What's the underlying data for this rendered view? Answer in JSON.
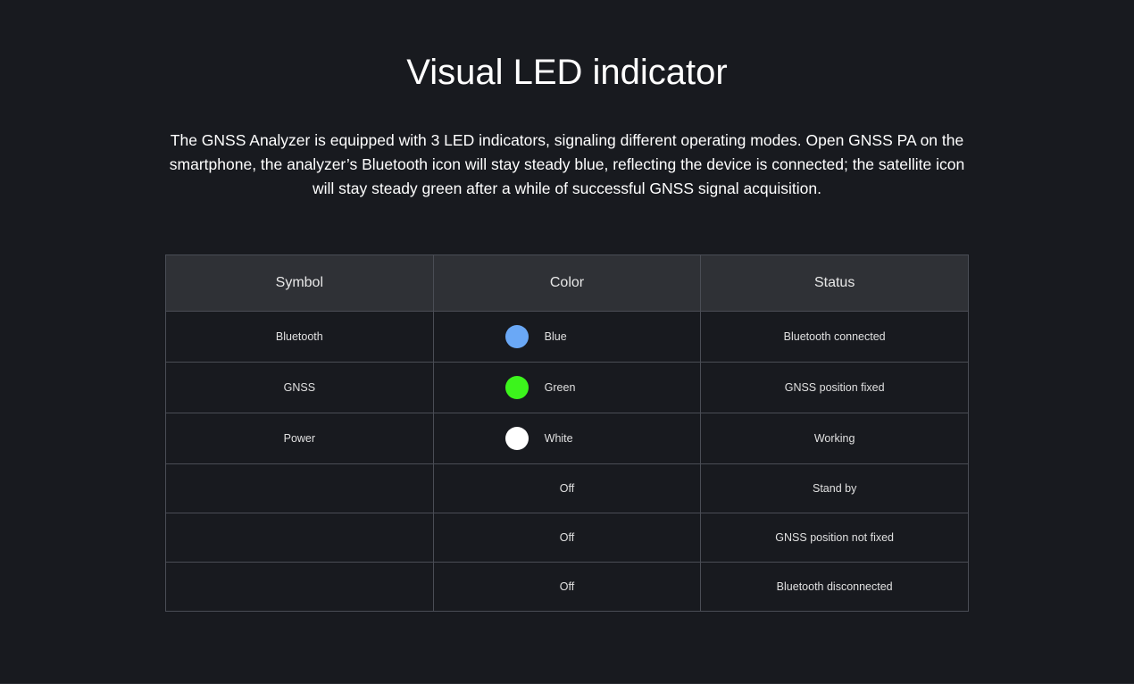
{
  "heading": {
    "title": "Visual LED indicator",
    "description": "The GNSS Analyzer is equipped with 3 LED indicators, signaling different operating modes. Open GNSS PA on the smartphone, the analyzer’s Bluetooth icon will stay steady blue, reflecting the device is connected; the satellite icon will stay steady green after a while of successful GNSS signal acquisition."
  },
  "table": {
    "headers": {
      "symbol": "Symbol",
      "color": "Color",
      "status": "Status"
    },
    "led_rows": [
      {
        "symbol": "Bluetooth",
        "color": "Blue",
        "swatch": "#6aa8f6",
        "status": "Bluetooth connected"
      },
      {
        "symbol": "GNSS",
        "color": "Green",
        "swatch": "#3cf41c",
        "status": "GNSS position fixed"
      },
      {
        "symbol": "Power",
        "color": "White",
        "swatch": "#ffffff",
        "status": "Working"
      }
    ],
    "off_rows": [
      {
        "symbol": "",
        "color": "Off",
        "status": "Stand by"
      },
      {
        "symbol": "",
        "color": "Off",
        "status": "GNSS position not fixed"
      },
      {
        "symbol": "",
        "color": "Off",
        "status": "Bluetooth disconnected"
      }
    ]
  }
}
